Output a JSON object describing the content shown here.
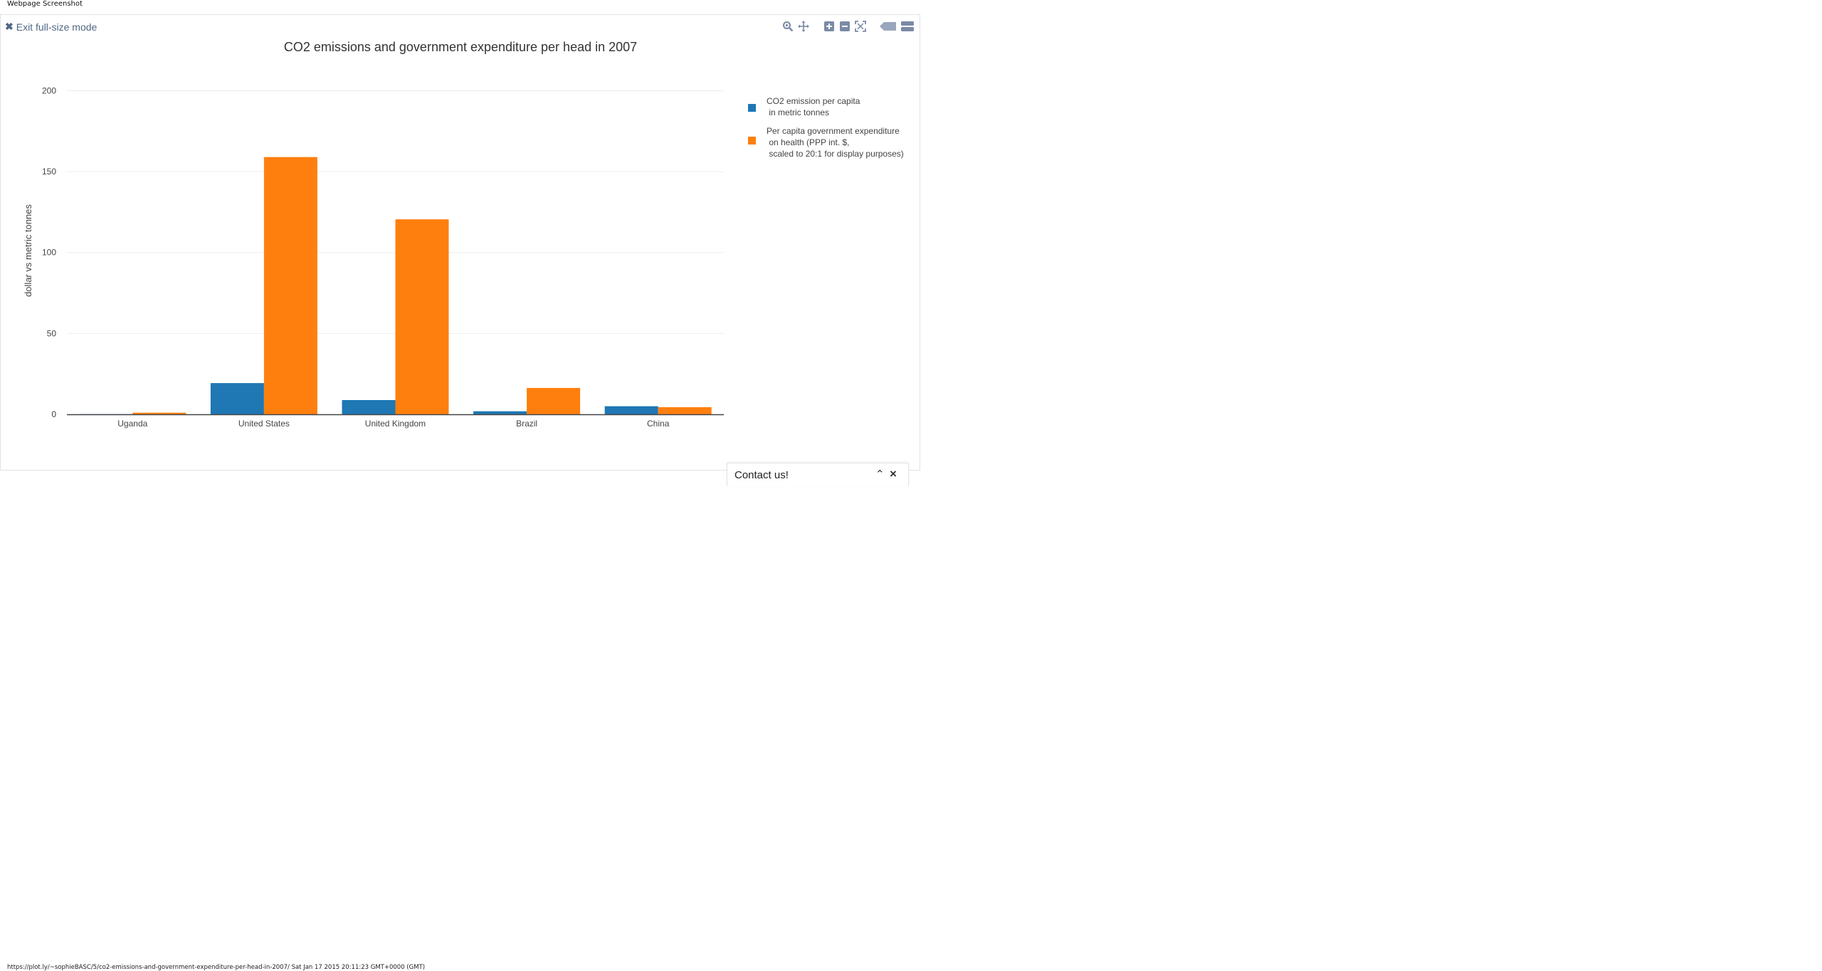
{
  "screenshot_title": "Webpage Screenshot",
  "exit_fullsize_label": "Exit full-size mode",
  "modebar": {
    "icons": [
      "zoom-icon",
      "pan-icon",
      "zoom-in-icon",
      "zoom-out-icon",
      "autoscale-icon",
      "tag-icon",
      "hover-compare-icon"
    ]
  },
  "contact": {
    "label": "Contact us!"
  },
  "footer": {
    "url_text": "https://plot.ly/~sophieBASC/5/co2-emissions-and-government-expenditure-per-head-in-2007/ Sat Jan 17 2015 20:11:23 GMT+0000 (GMT)"
  },
  "colors": {
    "series1": "#1f77b4",
    "series2": "#ff7f0e",
    "axis_text": "#444444",
    "grid": "#eeeeee"
  },
  "chart_data": {
    "type": "bar",
    "title": "CO2 emissions and government expenditure per head in 2007",
    "xlabel": "",
    "ylabel": "dollar vs metric tonnes",
    "ylim": [
      0,
      220
    ],
    "yticks": [
      0,
      50,
      100,
      150,
      200
    ],
    "grid": true,
    "legend_position": "right",
    "categories": [
      "Uganda",
      "United States",
      "United Kingdom",
      "Brazil",
      "China"
    ],
    "series": [
      {
        "name": [
          "CO2 emission per capita",
          " in metric tonnes"
        ],
        "color": "#1f77b4",
        "values": [
          0.1,
          19.3,
          8.8,
          1.9,
          5.0
        ]
      },
      {
        "name": [
          "Per capita government expenditure",
          " on health (PPP int. $,",
          " scaled to 20:1 for display purposes)"
        ],
        "color": "#ff7f0e",
        "values": [
          1.0,
          159.0,
          120.5,
          16.3,
          4.4
        ]
      }
    ]
  }
}
